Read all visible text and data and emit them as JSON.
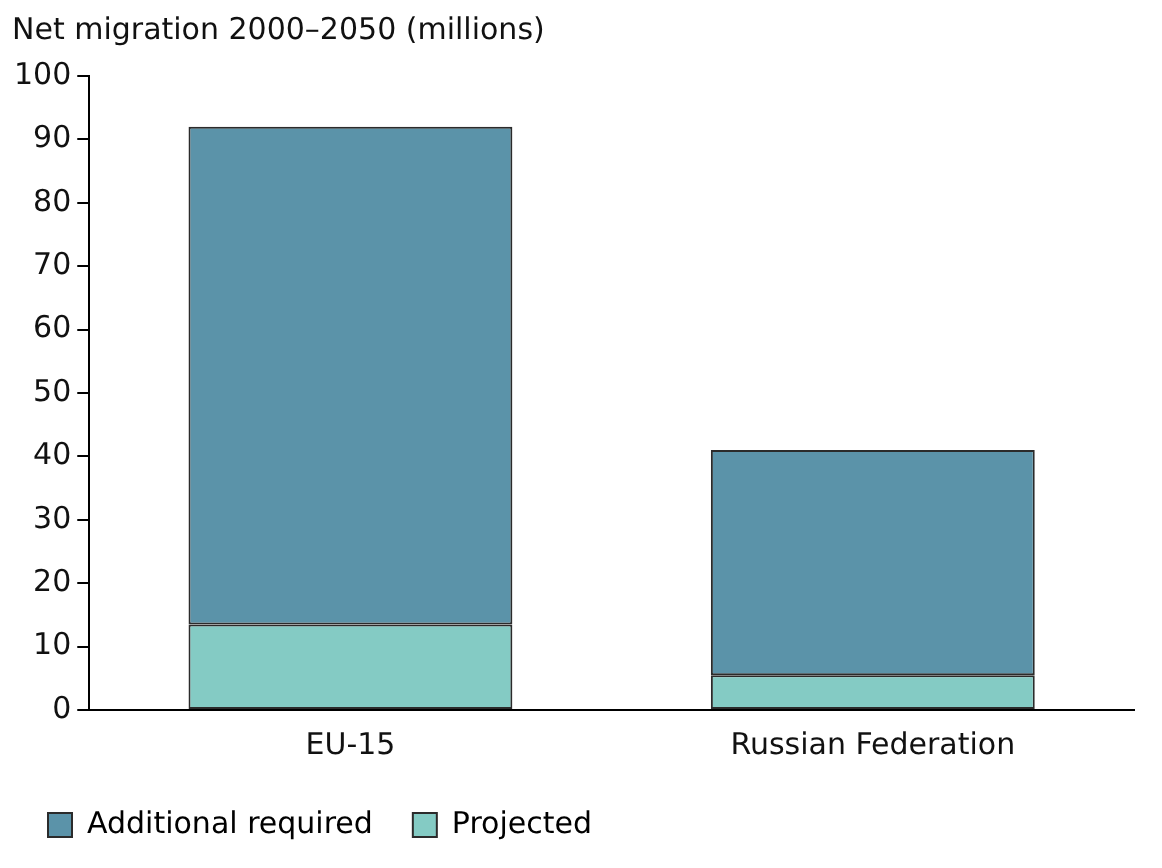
{
  "chart_data": {
    "type": "bar",
    "ylabel": "Net migration 2000–2050 (millions)",
    "categories": [
      "EU-15",
      "Russian Federation"
    ],
    "stacked": true,
    "series": [
      {
        "name": "Projected",
        "color": "#84cbc4",
        "values": [
          13.5,
          5.5
        ]
      },
      {
        "name": "Additional required",
        "color": "#5b93a9",
        "values": [
          78.5,
          35.5
        ]
      }
    ],
    "ylim": [
      0,
      100
    ],
    "yticks": [
      0,
      10,
      20,
      30,
      40,
      50,
      60,
      70,
      80,
      90,
      100
    ],
    "grid": false,
    "legend": "bottom"
  }
}
